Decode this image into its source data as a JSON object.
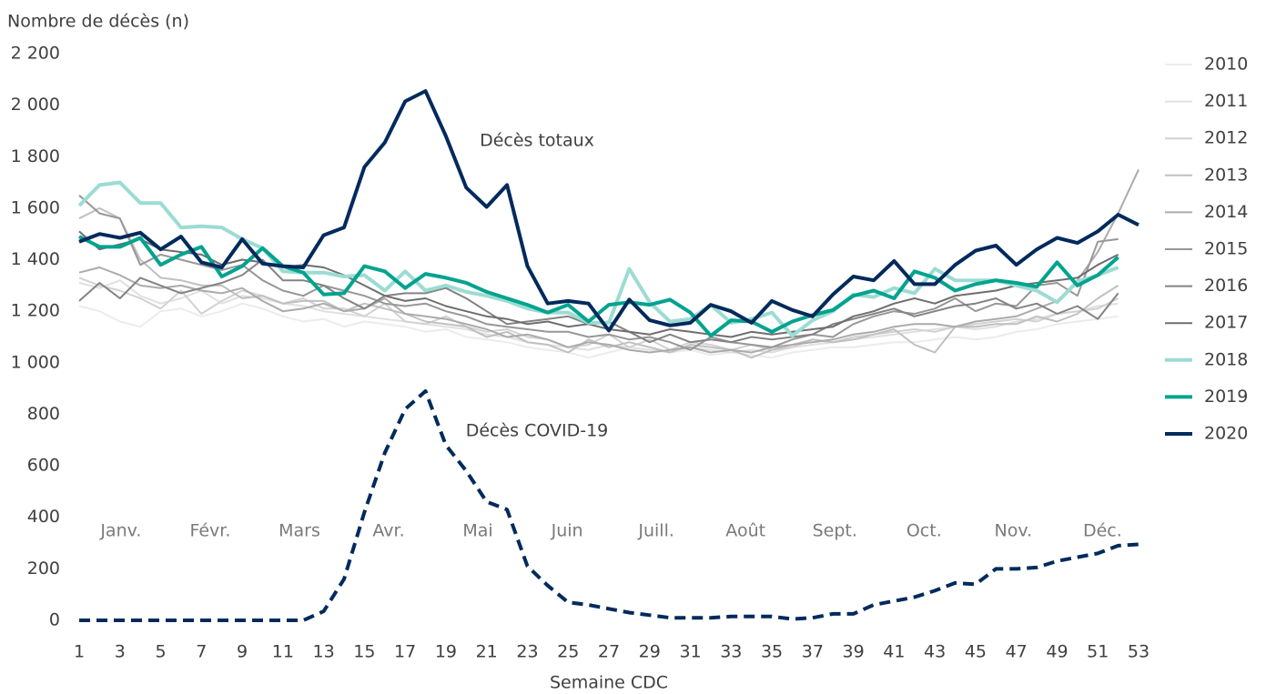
{
  "chart_data": {
    "type": "line",
    "ylabel": "Nombre de décès (n)",
    "xlabel": "Semaine CDC",
    "annotations": [
      "Décès totaux",
      "Décès COVID-19"
    ],
    "months": [
      "Janv.",
      "Févr.",
      "Mars",
      "Avr.",
      "Mai",
      "Juin",
      "Juill.",
      "Août",
      "Sept.",
      "Oct.",
      "Nov.",
      "Déc."
    ],
    "x": [
      1,
      2,
      3,
      4,
      5,
      6,
      7,
      8,
      9,
      10,
      11,
      12,
      13,
      14,
      15,
      16,
      17,
      18,
      19,
      20,
      21,
      22,
      23,
      24,
      25,
      26,
      27,
      28,
      29,
      30,
      31,
      32,
      33,
      34,
      35,
      36,
      37,
      38,
      39,
      40,
      41,
      42,
      43,
      44,
      45,
      46,
      47,
      48,
      49,
      50,
      51,
      52,
      53
    ],
    "xlim": [
      1,
      53
    ],
    "xticks": [
      1,
      3,
      5,
      7,
      9,
      11,
      13,
      15,
      17,
      19,
      21,
      23,
      25,
      27,
      29,
      31,
      33,
      35,
      37,
      39,
      41,
      43,
      45,
      47,
      49,
      51,
      53
    ],
    "ylim": [
      0,
      2200
    ],
    "yticks": [
      0,
      200,
      400,
      600,
      800,
      {
        "value": 1000,
        "label": "1 000"
      },
      {
        "value": 1200,
        "label": "1 200"
      },
      {
        "value": 1400,
        "label": "1 400"
      },
      {
        "value": 1600,
        "label": "1 600"
      },
      {
        "value": 1800,
        "label": "1 800"
      },
      {
        "value": 2000,
        "label": "2 000"
      },
      {
        "value": 2200,
        "label": "2 200"
      }
    ],
    "grid": false,
    "legend": "right",
    "series": [
      {
        "name": "2010",
        "color": "#ececec",
        "width": 2,
        "values": [
          1220,
          1200,
          1160,
          1140,
          1200,
          1210,
          1180,
          1200,
          1230,
          1210,
          1180,
          1160,
          1170,
          1140,
          1160,
          1150,
          1140,
          1120,
          1130,
          1100,
          1090,
          1080,
          1060,
          1050,
          1040,
          1020,
          1040,
          1060,
          1050,
          1040,
          1050,
          1030,
          1040,
          1030,
          1020,
          1040,
          1050,
          1060,
          1060,
          1070,
          1080,
          1080,
          1090,
          1100,
          1090,
          1100,
          1120,
          1130,
          1150,
          1160,
          1170,
          1180,
          null
        ]
      },
      {
        "name": "2011",
        "color": "#e0e0e0",
        "width": 2,
        "values": [
          1310,
          1290,
          1320,
          1260,
          1230,
          1250,
          1280,
          1230,
          1260,
          1250,
          1230,
          1220,
          1200,
          1190,
          1180,
          1170,
          1160,
          1150,
          1140,
          1130,
          1110,
          1100,
          1080,
          1070,
          1060,
          1050,
          1070,
          1060,
          1050,
          1040,
          1060,
          1050,
          1040,
          1050,
          1040,
          1060,
          1070,
          1080,
          1090,
          1100,
          1110,
          1120,
          1130,
          1140,
          1130,
          1140,
          1160,
          1170,
          1190,
          1200,
          1220,
          1230,
          null
        ]
      },
      {
        "name": "2012",
        "color": "#d2d2d2",
        "width": 2,
        "values": [
          1330,
          1300,
          1280,
          1250,
          1210,
          1280,
          1190,
          1240,
          1280,
          1260,
          1230,
          1250,
          1210,
          1210,
          1180,
          1230,
          1160,
          1150,
          1180,
          1140,
          1120,
          1130,
          1100,
          1090,
          1060,
          1070,
          1110,
          1060,
          1090,
          1050,
          1080,
          1070,
          1050,
          1070,
          1050,
          1060,
          1090,
          1080,
          1100,
          1110,
          1120,
          1130,
          1120,
          1140,
          1150,
          1160,
          1170,
          1160,
          1190,
          1200,
          1210,
          1250,
          null
        ]
      },
      {
        "name": "2013",
        "color": "#c0c0c0",
        "width": 2,
        "values": [
          1560,
          1600,
          1560,
          1400,
          1330,
          1320,
          1300,
          1300,
          1250,
          1260,
          1230,
          1240,
          1240,
          1200,
          1230,
          1210,
          1190,
          1160,
          1150,
          1140,
          1100,
          1120,
          1080,
          1070,
          1040,
          1090,
          1060,
          1080,
          1060,
          1040,
          1070,
          1060,
          1050,
          1020,
          1050,
          1070,
          1090,
          1080,
          1090,
          1110,
          1130,
          1070,
          1040,
          1140,
          1140,
          1150,
          1150,
          1180,
          1160,
          1190,
          1250,
          1300,
          null
        ]
      },
      {
        "name": "2014",
        "color": "#ababab",
        "width": 2,
        "values": [
          1350,
          1370,
          1340,
          1300,
          1290,
          1300,
          1280,
          1270,
          1290,
          1240,
          1200,
          1210,
          1230,
          1200,
          1210,
          1250,
          1190,
          1180,
          1170,
          1150,
          1130,
          1100,
          1110,
          1090,
          1060,
          1080,
          1070,
          1050,
          1040,
          1050,
          1060,
          1040,
          1050,
          1040,
          1060,
          1070,
          1080,
          1090,
          1110,
          1120,
          1140,
          1150,
          1150,
          1140,
          1160,
          1170,
          1180,
          1210,
          1240,
          1320,
          1430,
          1580,
          1750
        ]
      },
      {
        "name": "2015",
        "color": "#979797",
        "width": 2,
        "values": [
          1650,
          1580,
          1560,
          1380,
          1420,
          1400,
          1380,
          1360,
          1380,
          1320,
          1280,
          1260,
          1300,
          1280,
          1260,
          1230,
          1220,
          1230,
          1200,
          1180,
          1150,
          1140,
          1130,
          1120,
          1120,
          1100,
          1110,
          1090,
          1100,
          1080,
          1050,
          1100,
          1080,
          1070,
          1060,
          1090,
          1110,
          1100,
          1150,
          1180,
          1200,
          1190,
          1210,
          1250,
          1200,
          1230,
          1220,
          1300,
          1310,
          1260,
          1470,
          1480,
          null
        ]
      },
      {
        "name": "2016",
        "color": "#838383",
        "width": 2,
        "values": [
          1240,
          1310,
          1250,
          1330,
          1300,
          1270,
          1290,
          1310,
          1340,
          1400,
          1320,
          1320,
          1300,
          1250,
          1210,
          1260,
          1270,
          1270,
          1290,
          1250,
          1200,
          1150,
          1160,
          1170,
          1180,
          1150,
          1160,
          1120,
          1080,
          1110,
          1080,
          1090,
          1080,
          1100,
          1090,
          1100,
          1110,
          1150,
          1170,
          1190,
          1210,
          1180,
          1200,
          1220,
          1230,
          1250,
          1210,
          1230,
          1190,
          1220,
          1170,
          1270,
          null
        ]
      },
      {
        "name": "2017",
        "color": "#6e6e6e",
        "width": 2,
        "values": [
          1510,
          1440,
          1460,
          1480,
          1440,
          1430,
          1420,
          1380,
          1400,
          1390,
          1370,
          1380,
          1370,
          1340,
          1300,
          1260,
          1240,
          1250,
          1220,
          1200,
          1180,
          1170,
          1150,
          1160,
          1140,
          1150,
          1130,
          1120,
          1110,
          1130,
          1120,
          1110,
          1100,
          1120,
          1110,
          1120,
          1130,
          1140,
          1180,
          1200,
          1230,
          1250,
          1230,
          1260,
          1270,
          1280,
          1300,
          1310,
          1320,
          1330,
          1380,
          1420,
          null
        ]
      },
      {
        "name": "2018",
        "color": "#9bdcd3",
        "width": 4,
        "values": [
          1610,
          1690,
          1700,
          1620,
          1620,
          1525,
          1530,
          1525,
          1480,
          1445,
          1355,
          1350,
          1350,
          1335,
          1340,
          1280,
          1355,
          1280,
          1300,
          1275,
          1260,
          1240,
          1210,
          1195,
          1195,
          1155,
          1155,
          1365,
          1235,
          1160,
          1170,
          1225,
          1155,
          1170,
          1195,
          1105,
          1165,
          1200,
          1265,
          1255,
          1290,
          1270,
          1365,
          1320,
          1320,
          1320,
          1300,
          1280,
          1235,
          1315,
          1340,
          1370,
          null
        ]
      },
      {
        "name": "2019",
        "color": "#00a38e",
        "width": 4,
        "values": [
          1490,
          1450,
          1450,
          1485,
          1380,
          1420,
          1450,
          1335,
          1375,
          1445,
          1375,
          1350,
          1265,
          1270,
          1375,
          1355,
          1290,
          1345,
          1330,
          1310,
          1275,
          1250,
          1225,
          1195,
          1225,
          1160,
          1225,
          1235,
          1225,
          1245,
          1195,
          1105,
          1165,
          1160,
          1120,
          1160,
          1185,
          1205,
          1260,
          1280,
          1250,
          1355,
          1330,
          1280,
          1305,
          1320,
          1310,
          1295,
          1390,
          1300,
          1340,
          1410,
          null
        ]
      },
      {
        "name": "2020",
        "color": "#002a5c",
        "width": 4,
        "values": [
          1470,
          1500,
          1485,
          1505,
          1440,
          1490,
          1390,
          1370,
          1480,
          1385,
          1375,
          1370,
          1495,
          1525,
          1760,
          1855,
          2015,
          2055,
          1880,
          1680,
          1605,
          1690,
          1375,
          1230,
          1240,
          1230,
          1125,
          1245,
          1165,
          1145,
          1155,
          1225,
          1200,
          1155,
          1240,
          1205,
          1180,
          1265,
          1335,
          1320,
          1395,
          1305,
          1305,
          1380,
          1435,
          1455,
          1380,
          1440,
          1485,
          1465,
          1510,
          1575,
          1535
        ]
      }
    ],
    "covid": {
      "color": "#002a5c",
      "values": [
        0,
        0,
        0,
        0,
        0,
        0,
        0,
        0,
        0,
        0,
        0,
        0,
        35,
        160,
        420,
        650,
        820,
        890,
        680,
        580,
        460,
        430,
        210,
        135,
        70,
        60,
        45,
        30,
        20,
        10,
        10,
        10,
        15,
        15,
        15,
        5,
        10,
        25,
        25,
        60,
        75,
        90,
        115,
        145,
        140,
        200,
        200,
        205,
        230,
        245,
        260,
        290,
        295
      ]
    }
  }
}
